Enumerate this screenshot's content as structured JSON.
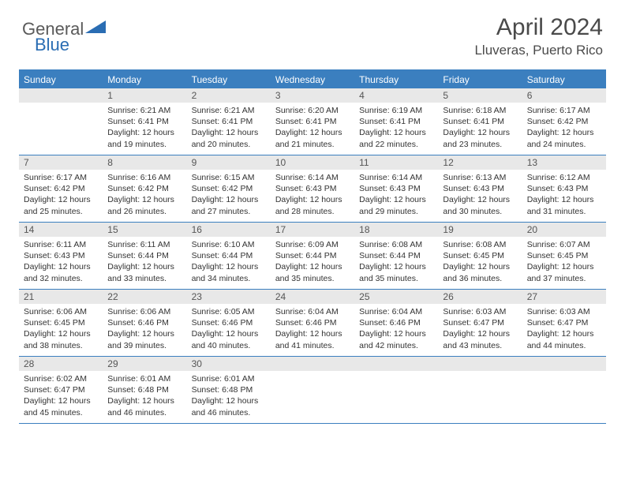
{
  "logo": {
    "general": "General",
    "blue": "Blue"
  },
  "title": {
    "month": "April 2024",
    "location": "Lluveras, Puerto Rico"
  },
  "colors": {
    "header_bar": "#3b7fbf",
    "daynum_bg": "#e8e8e8",
    "rule": "#3b7fbf"
  },
  "weekdays": [
    "Sunday",
    "Monday",
    "Tuesday",
    "Wednesday",
    "Thursday",
    "Friday",
    "Saturday"
  ],
  "weeks": [
    [
      {
        "num": "",
        "sunrise": "",
        "sunset": "",
        "daylight1": "",
        "daylight2": ""
      },
      {
        "num": "1",
        "sunrise": "Sunrise: 6:21 AM",
        "sunset": "Sunset: 6:41 PM",
        "daylight1": "Daylight: 12 hours",
        "daylight2": "and 19 minutes."
      },
      {
        "num": "2",
        "sunrise": "Sunrise: 6:21 AM",
        "sunset": "Sunset: 6:41 PM",
        "daylight1": "Daylight: 12 hours",
        "daylight2": "and 20 minutes."
      },
      {
        "num": "3",
        "sunrise": "Sunrise: 6:20 AM",
        "sunset": "Sunset: 6:41 PM",
        "daylight1": "Daylight: 12 hours",
        "daylight2": "and 21 minutes."
      },
      {
        "num": "4",
        "sunrise": "Sunrise: 6:19 AM",
        "sunset": "Sunset: 6:41 PM",
        "daylight1": "Daylight: 12 hours",
        "daylight2": "and 22 minutes."
      },
      {
        "num": "5",
        "sunrise": "Sunrise: 6:18 AM",
        "sunset": "Sunset: 6:41 PM",
        "daylight1": "Daylight: 12 hours",
        "daylight2": "and 23 minutes."
      },
      {
        "num": "6",
        "sunrise": "Sunrise: 6:17 AM",
        "sunset": "Sunset: 6:42 PM",
        "daylight1": "Daylight: 12 hours",
        "daylight2": "and 24 minutes."
      }
    ],
    [
      {
        "num": "7",
        "sunrise": "Sunrise: 6:17 AM",
        "sunset": "Sunset: 6:42 PM",
        "daylight1": "Daylight: 12 hours",
        "daylight2": "and 25 minutes."
      },
      {
        "num": "8",
        "sunrise": "Sunrise: 6:16 AM",
        "sunset": "Sunset: 6:42 PM",
        "daylight1": "Daylight: 12 hours",
        "daylight2": "and 26 minutes."
      },
      {
        "num": "9",
        "sunrise": "Sunrise: 6:15 AM",
        "sunset": "Sunset: 6:42 PM",
        "daylight1": "Daylight: 12 hours",
        "daylight2": "and 27 minutes."
      },
      {
        "num": "10",
        "sunrise": "Sunrise: 6:14 AM",
        "sunset": "Sunset: 6:43 PM",
        "daylight1": "Daylight: 12 hours",
        "daylight2": "and 28 minutes."
      },
      {
        "num": "11",
        "sunrise": "Sunrise: 6:14 AM",
        "sunset": "Sunset: 6:43 PM",
        "daylight1": "Daylight: 12 hours",
        "daylight2": "and 29 minutes."
      },
      {
        "num": "12",
        "sunrise": "Sunrise: 6:13 AM",
        "sunset": "Sunset: 6:43 PM",
        "daylight1": "Daylight: 12 hours",
        "daylight2": "and 30 minutes."
      },
      {
        "num": "13",
        "sunrise": "Sunrise: 6:12 AM",
        "sunset": "Sunset: 6:43 PM",
        "daylight1": "Daylight: 12 hours",
        "daylight2": "and 31 minutes."
      }
    ],
    [
      {
        "num": "14",
        "sunrise": "Sunrise: 6:11 AM",
        "sunset": "Sunset: 6:43 PM",
        "daylight1": "Daylight: 12 hours",
        "daylight2": "and 32 minutes."
      },
      {
        "num": "15",
        "sunrise": "Sunrise: 6:11 AM",
        "sunset": "Sunset: 6:44 PM",
        "daylight1": "Daylight: 12 hours",
        "daylight2": "and 33 minutes."
      },
      {
        "num": "16",
        "sunrise": "Sunrise: 6:10 AM",
        "sunset": "Sunset: 6:44 PM",
        "daylight1": "Daylight: 12 hours",
        "daylight2": "and 34 minutes."
      },
      {
        "num": "17",
        "sunrise": "Sunrise: 6:09 AM",
        "sunset": "Sunset: 6:44 PM",
        "daylight1": "Daylight: 12 hours",
        "daylight2": "and 35 minutes."
      },
      {
        "num": "18",
        "sunrise": "Sunrise: 6:08 AM",
        "sunset": "Sunset: 6:44 PM",
        "daylight1": "Daylight: 12 hours",
        "daylight2": "and 35 minutes."
      },
      {
        "num": "19",
        "sunrise": "Sunrise: 6:08 AM",
        "sunset": "Sunset: 6:45 PM",
        "daylight1": "Daylight: 12 hours",
        "daylight2": "and 36 minutes."
      },
      {
        "num": "20",
        "sunrise": "Sunrise: 6:07 AM",
        "sunset": "Sunset: 6:45 PM",
        "daylight1": "Daylight: 12 hours",
        "daylight2": "and 37 minutes."
      }
    ],
    [
      {
        "num": "21",
        "sunrise": "Sunrise: 6:06 AM",
        "sunset": "Sunset: 6:45 PM",
        "daylight1": "Daylight: 12 hours",
        "daylight2": "and 38 minutes."
      },
      {
        "num": "22",
        "sunrise": "Sunrise: 6:06 AM",
        "sunset": "Sunset: 6:46 PM",
        "daylight1": "Daylight: 12 hours",
        "daylight2": "and 39 minutes."
      },
      {
        "num": "23",
        "sunrise": "Sunrise: 6:05 AM",
        "sunset": "Sunset: 6:46 PM",
        "daylight1": "Daylight: 12 hours",
        "daylight2": "and 40 minutes."
      },
      {
        "num": "24",
        "sunrise": "Sunrise: 6:04 AM",
        "sunset": "Sunset: 6:46 PM",
        "daylight1": "Daylight: 12 hours",
        "daylight2": "and 41 minutes."
      },
      {
        "num": "25",
        "sunrise": "Sunrise: 6:04 AM",
        "sunset": "Sunset: 6:46 PM",
        "daylight1": "Daylight: 12 hours",
        "daylight2": "and 42 minutes."
      },
      {
        "num": "26",
        "sunrise": "Sunrise: 6:03 AM",
        "sunset": "Sunset: 6:47 PM",
        "daylight1": "Daylight: 12 hours",
        "daylight2": "and 43 minutes."
      },
      {
        "num": "27",
        "sunrise": "Sunrise: 6:03 AM",
        "sunset": "Sunset: 6:47 PM",
        "daylight1": "Daylight: 12 hours",
        "daylight2": "and 44 minutes."
      }
    ],
    [
      {
        "num": "28",
        "sunrise": "Sunrise: 6:02 AM",
        "sunset": "Sunset: 6:47 PM",
        "daylight1": "Daylight: 12 hours",
        "daylight2": "and 45 minutes."
      },
      {
        "num": "29",
        "sunrise": "Sunrise: 6:01 AM",
        "sunset": "Sunset: 6:48 PM",
        "daylight1": "Daylight: 12 hours",
        "daylight2": "and 46 minutes."
      },
      {
        "num": "30",
        "sunrise": "Sunrise: 6:01 AM",
        "sunset": "Sunset: 6:48 PM",
        "daylight1": "Daylight: 12 hours",
        "daylight2": "and 46 minutes."
      },
      {
        "num": "",
        "sunrise": "",
        "sunset": "",
        "daylight1": "",
        "daylight2": ""
      },
      {
        "num": "",
        "sunrise": "",
        "sunset": "",
        "daylight1": "",
        "daylight2": ""
      },
      {
        "num": "",
        "sunrise": "",
        "sunset": "",
        "daylight1": "",
        "daylight2": ""
      },
      {
        "num": "",
        "sunrise": "",
        "sunset": "",
        "daylight1": "",
        "daylight2": ""
      }
    ]
  ]
}
